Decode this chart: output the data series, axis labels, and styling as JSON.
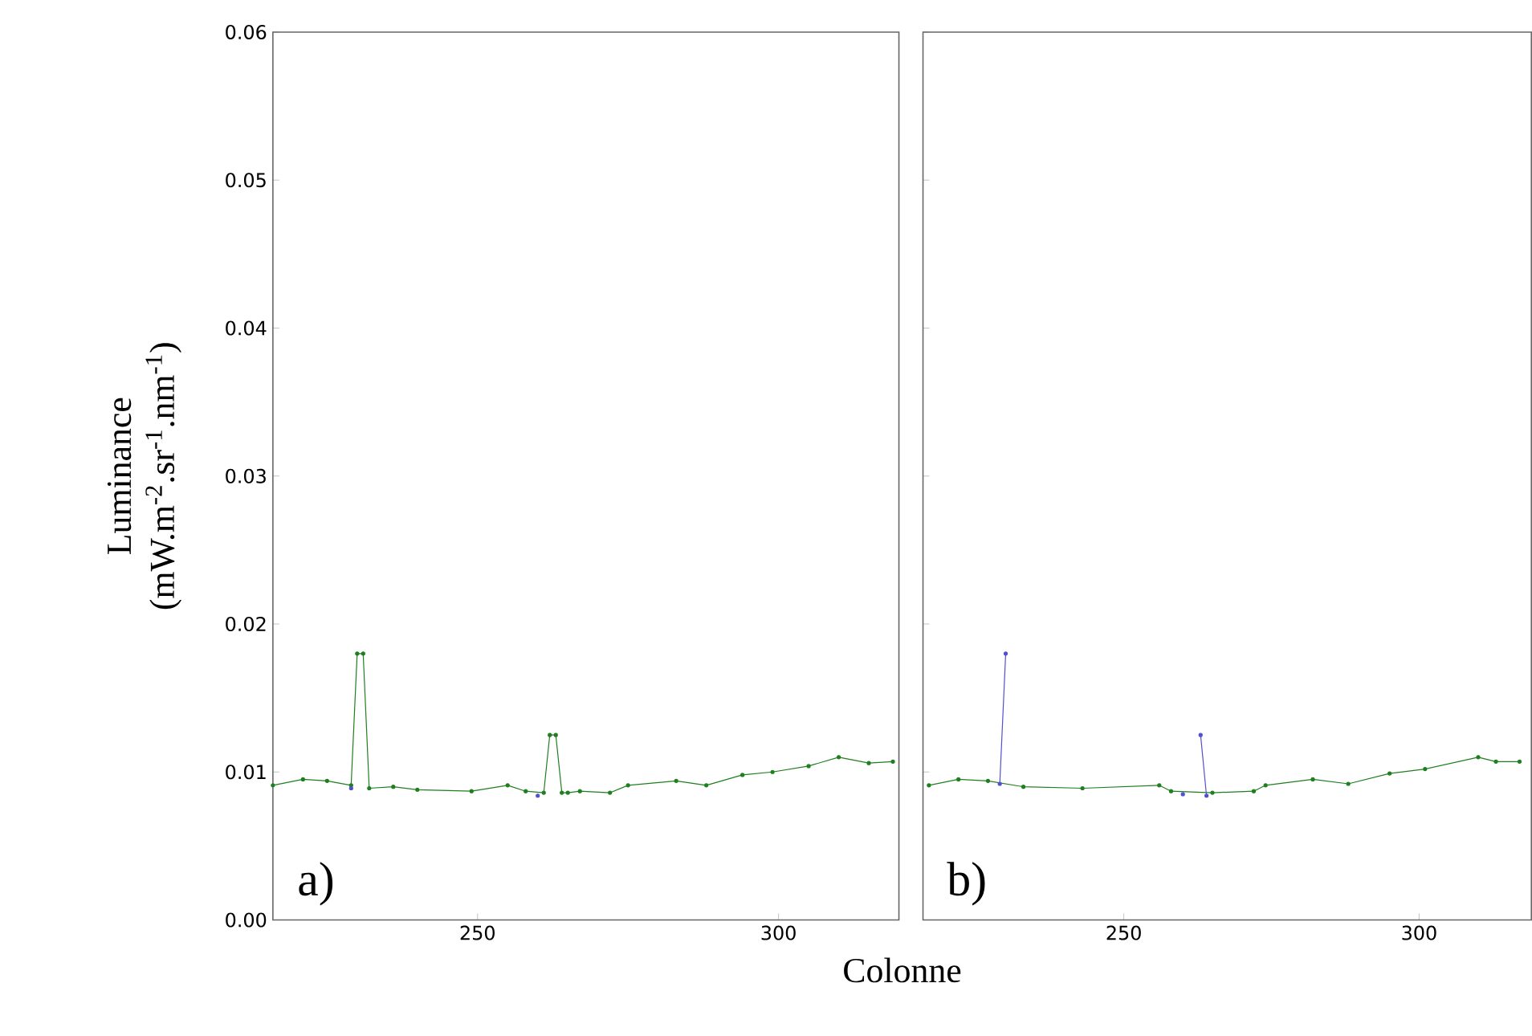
{
  "chart_data": [
    {
      "type": "line",
      "ylabel": "Luminance (mW.m$^{-2}$.sr$^{-1}$.nm$^{-1}$)",
      "xlabel": "Colonne",
      "xlim": [
        216,
        320
      ],
      "ylim": [
        0,
        0.06
      ],
      "xticks": [
        250,
        300
      ],
      "yticks": [
        {
          "value": 0,
          "label": "0.00"
        },
        {
          "value": 0.01,
          "label": "0.01"
        },
        {
          "value": 0.02,
          "label": "0.02"
        },
        {
          "value": 0.03,
          "label": "0.03"
        },
        {
          "value": 0.04,
          "label": "0.04"
        },
        {
          "value": 0.05,
          "label": "0.05"
        },
        {
          "value": 0.06,
          "label": "0.06"
        }
      ],
      "marker": "circle",
      "grid": false,
      "annotations": [
        "a)"
      ],
      "series": [
        {
          "color": "#1f7f1f",
          "x": [
            216,
            221,
            225,
            229,
            230,
            231,
            232,
            236,
            240,
            249,
            255,
            258,
            261,
            262,
            263,
            264,
            265,
            267,
            272,
            275,
            283,
            288,
            294,
            299,
            305,
            310,
            315,
            319
          ],
          "values": [
            0.0091,
            0.0095,
            0.0094,
            0.0091,
            0.018,
            0.018,
            0.0089,
            0.009,
            0.0088,
            0.0087,
            0.0091,
            0.0087,
            0.0086,
            0.0125,
            0.0125,
            0.0086,
            0.0086,
            0.0087,
            0.0086,
            0.0091,
            0.0094,
            0.0091,
            0.0098,
            0.01,
            0.0104,
            0.011,
            0.0106,
            0.0107
          ]
        },
        {
          "type": "scatter",
          "color": "#5050d0",
          "x": [
            229,
            260
          ],
          "values": [
            0.0089,
            0.0084
          ]
        }
      ]
    },
    {
      "type": "line",
      "xlim": [
        216,
        319
      ],
      "ylim": [
        0,
        0.06
      ],
      "tick_labels": "x",
      "xticks": [
        250,
        300
      ],
      "yticks": [
        {
          "value": 0,
          "label": null
        },
        {
          "value": 0.01,
          "label": null
        },
        {
          "value": 0.02,
          "label": null
        },
        {
          "value": 0.03,
          "label": null
        },
        {
          "value": 0.04,
          "label": null
        },
        {
          "value": 0.05,
          "label": null
        },
        {
          "value": 0.06,
          "label": null
        }
      ],
      "marker": "circle",
      "grid": false,
      "annotations": [
        "b)"
      ],
      "series": [
        {
          "color": "#1f7f1f",
          "x": [
            217,
            222,
            227,
            233,
            243,
            256,
            258,
            265,
            272,
            274,
            282,
            288,
            295,
            301,
            310,
            313,
            317
          ],
          "values": [
            0.0091,
            0.0095,
            0.0094,
            0.009,
            0.0089,
            0.0091,
            0.0087,
            0.0086,
            0.0087,
            0.0091,
            0.0095,
            0.0092,
            0.0099,
            0.0102,
            0.011,
            0.0107,
            0.0107
          ]
        },
        {
          "color": "#5050d0",
          "x": [
            229,
            230,
            231,
            260,
            261,
            262,
            263,
            264
          ],
          "values": [
            0.0092,
            0.018,
            null,
            0.0085,
            null,
            null,
            0.0125,
            0.0084
          ]
        }
      ]
    }
  ]
}
